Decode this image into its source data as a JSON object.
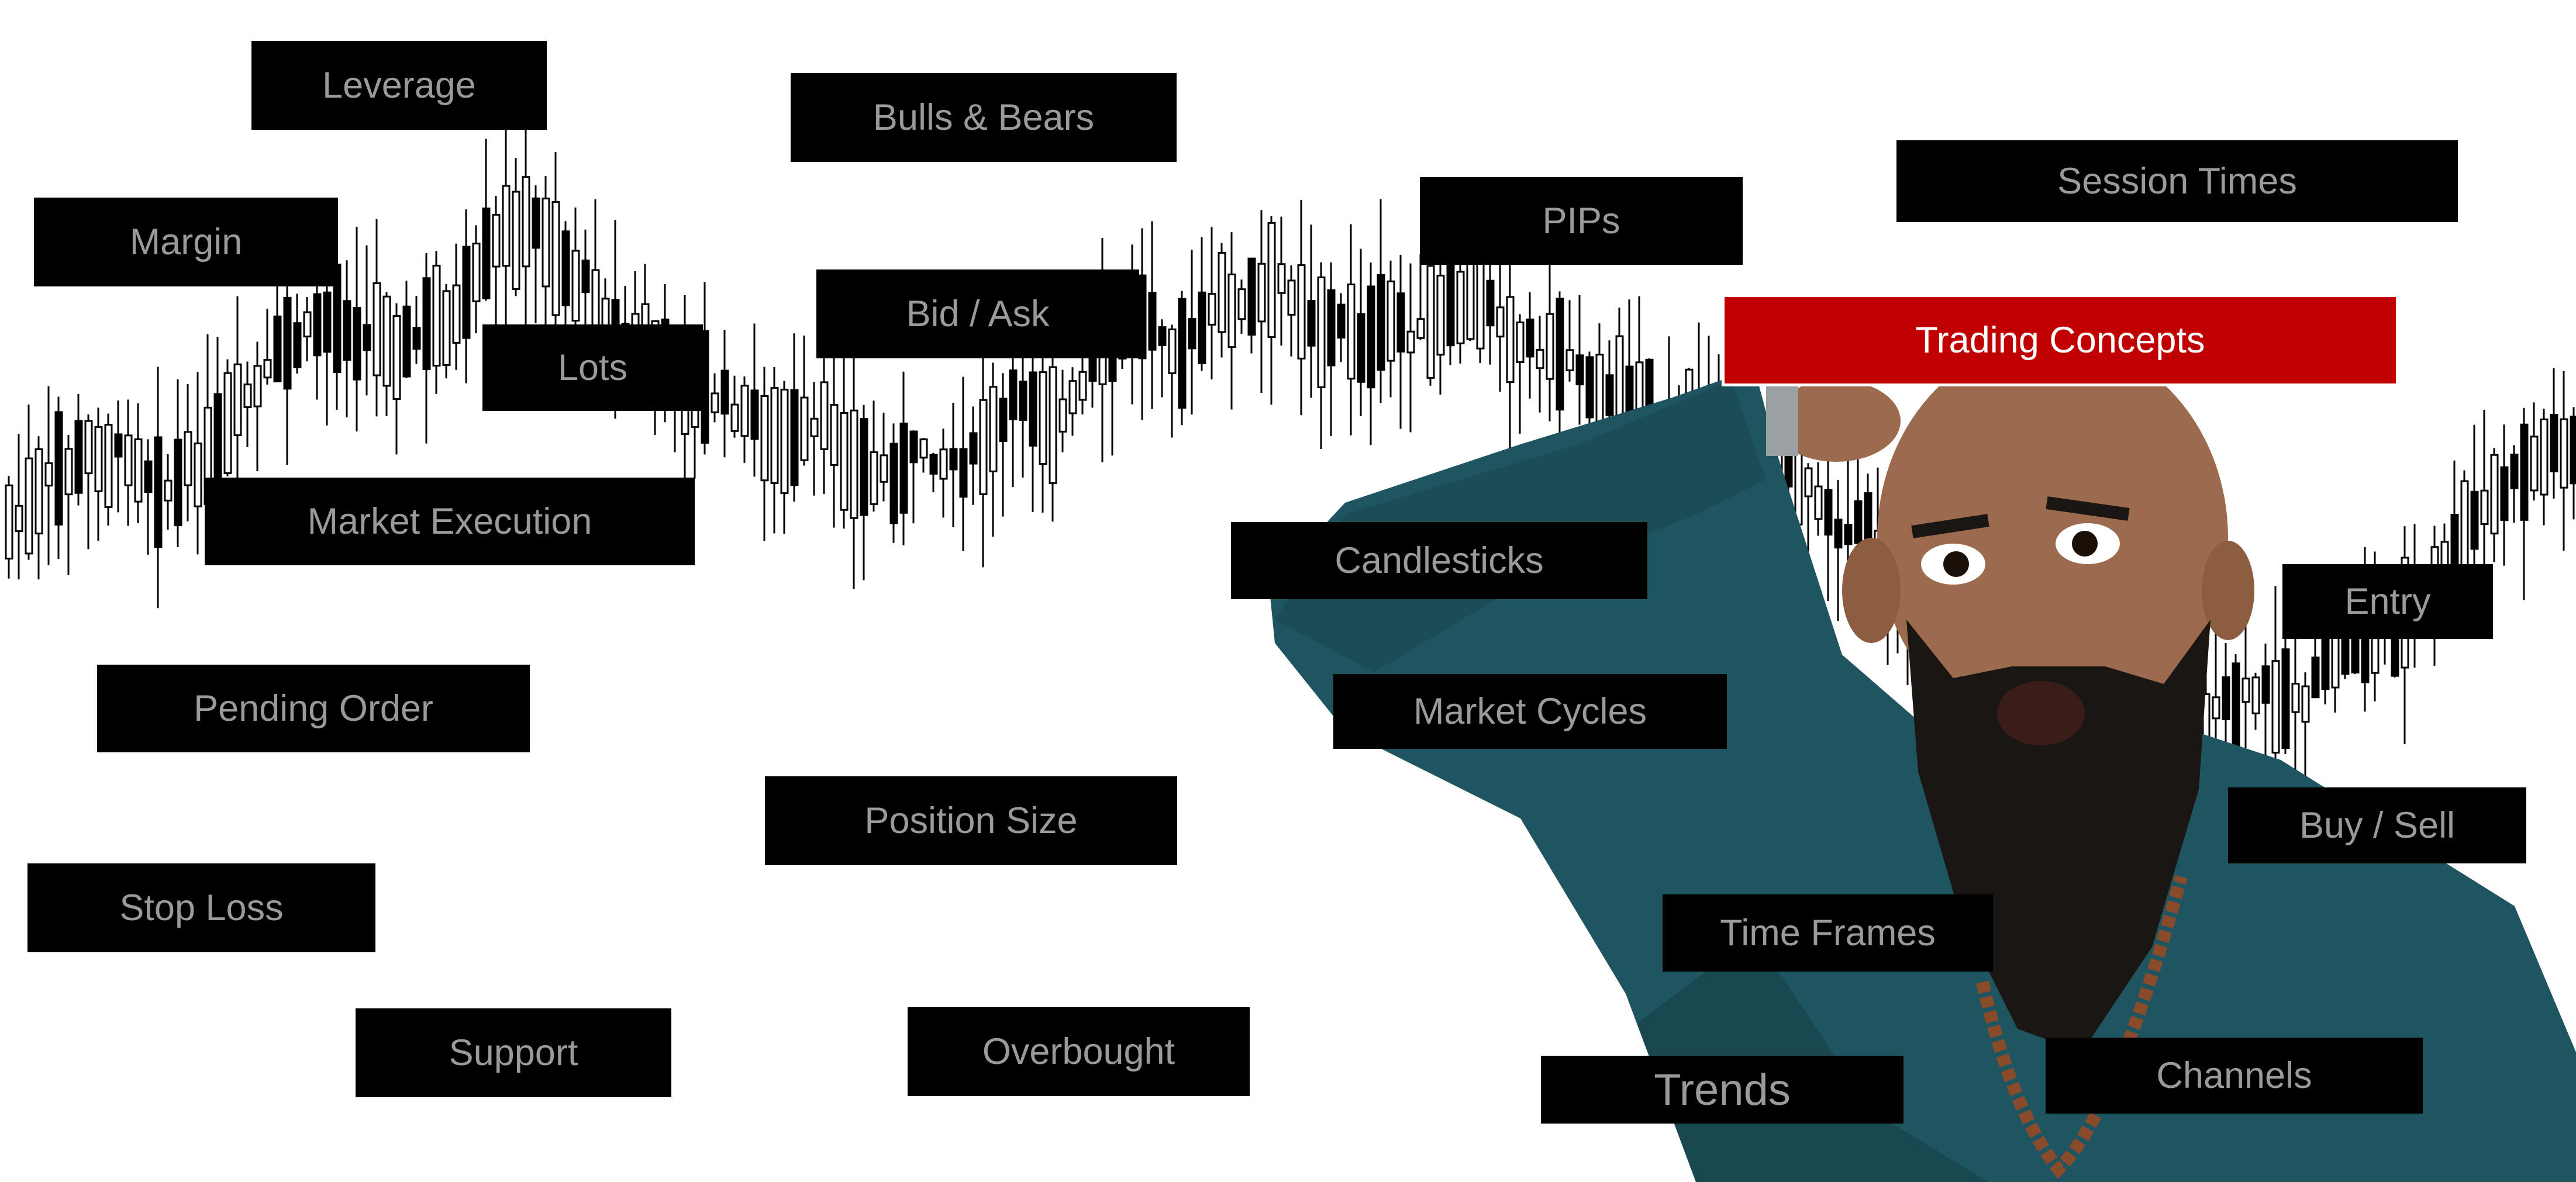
{
  "colors": {
    "background": "#ffffff",
    "label_bg": "#000000",
    "label_text": "#9a9a9a",
    "highlight_bg": "#c00000",
    "highlight_text": "#ffffff",
    "shirt": "#1f5560",
    "skin": "#9c6a4c",
    "beard": "#1a1614"
  },
  "labels": {
    "leverage": "Leverage",
    "bulls_bears": "Bulls & Bears",
    "margin": "Margin",
    "pips": "PIPs",
    "session_times": "Session Times",
    "bid_ask": "Bid / Ask",
    "trading_concepts": "Trading Concepts",
    "lots": "Lots",
    "market_execution": "Market Execution",
    "candlesticks": "Candlesticks",
    "entry": "Entry",
    "pending_order": "Pending Order",
    "market_cycles": "Market Cycles",
    "position_size": "Position Size",
    "buy_sell": "Buy / Sell",
    "stop_loss": "Stop Loss",
    "time_frames": "Time Frames",
    "support": "Support",
    "overbought": "Overbought",
    "trends": "Trends",
    "channels": "Channels"
  },
  "illustration": {
    "background_chart": "candlestick-chart",
    "person": "confused-bearded-man"
  }
}
